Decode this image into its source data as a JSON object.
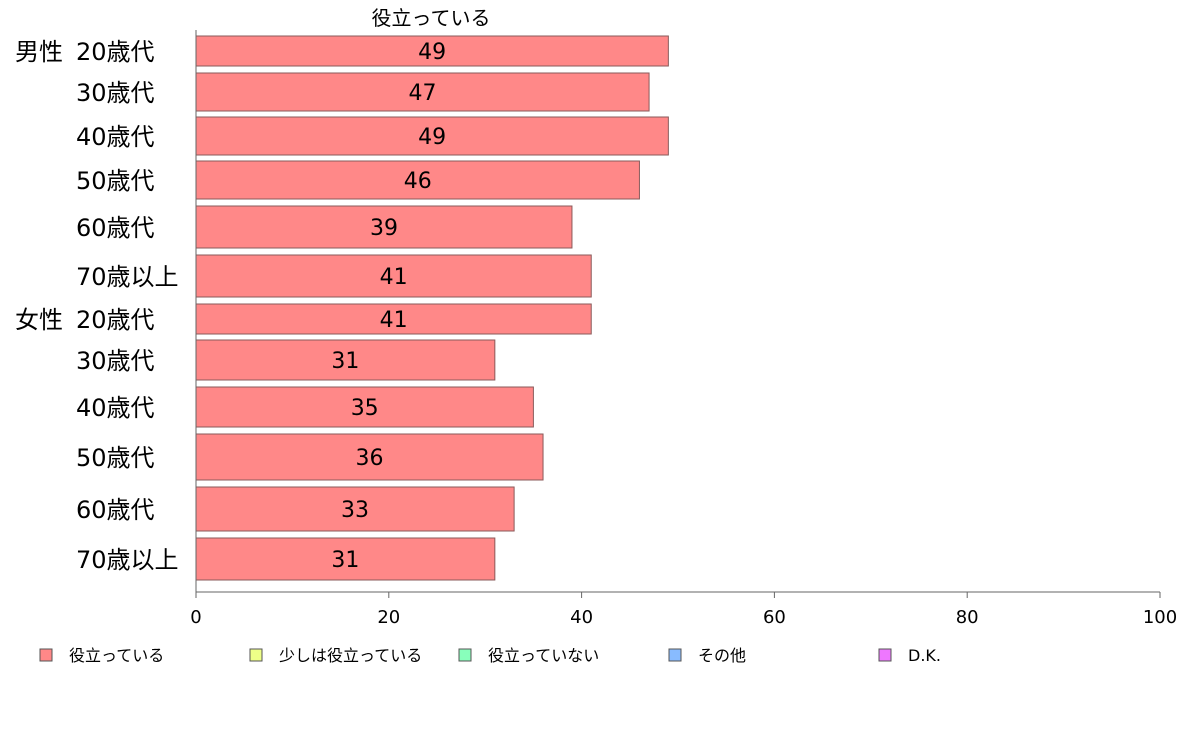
{
  "chart_data": {
    "type": "bar",
    "orientation": "horizontal",
    "title": "役立っている",
    "groups": [
      {
        "label": "男性",
        "start_index": 0
      },
      {
        "label": "女性",
        "start_index": 6
      }
    ],
    "categories": [
      "20歳代",
      "30歳代",
      "40歳代",
      "50歳代",
      "60歳代",
      "70歳以上",
      "20歳代",
      "30歳代",
      "40歳代",
      "50歳代",
      "60歳代",
      "70歳以上"
    ],
    "series": [
      {
        "name": "役立っている",
        "values": [
          49,
          47,
          49,
          46,
          39,
          41,
          41,
          31,
          35,
          36,
          33,
          31
        ],
        "color": "#ff8888"
      }
    ],
    "xlim": [
      0,
      100
    ],
    "xticks": [
      0,
      20,
      40,
      60,
      80,
      100
    ],
    "grid": false,
    "legend_position": "bottom",
    "legend": [
      {
        "label": "役立っている",
        "color": "#ff8888"
      },
      {
        "label": "少しは役立っている",
        "color": "#eeff88"
      },
      {
        "label": "役立っていない",
        "color": "#88ffbb"
      },
      {
        "label": "その他",
        "color": "#88bbff"
      },
      {
        "label": "D.K.",
        "color": "#ee77ff"
      }
    ]
  }
}
